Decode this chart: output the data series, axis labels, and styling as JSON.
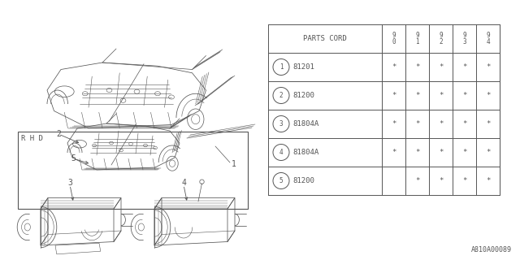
{
  "bg_color": "#ffffff",
  "line_color": "#555555",
  "table": {
    "header_col": "PARTS CORD",
    "year_cols": [
      "9\n0",
      "9\n1",
      "9\n2",
      "9\n3",
      "9\n4"
    ],
    "rows": [
      {
        "num": 1,
        "part": "81201",
        "marks": [
          "*",
          "*",
          "*",
          "*",
          "*"
        ]
      },
      {
        "num": 2,
        "part": "81200",
        "marks": [
          "*",
          "*",
          "*",
          "*",
          "*"
        ]
      },
      {
        "num": 3,
        "part": "81804A",
        "marks": [
          "*",
          "*",
          "*",
          "*",
          "*"
        ]
      },
      {
        "num": 4,
        "part": "81804A",
        "marks": [
          "*",
          "*",
          "*",
          "*",
          "*"
        ]
      },
      {
        "num": 5,
        "part": "81200",
        "marks": [
          "",
          "*",
          "*",
          "*",
          "*"
        ]
      }
    ]
  },
  "diagram_label": "A810A00089"
}
